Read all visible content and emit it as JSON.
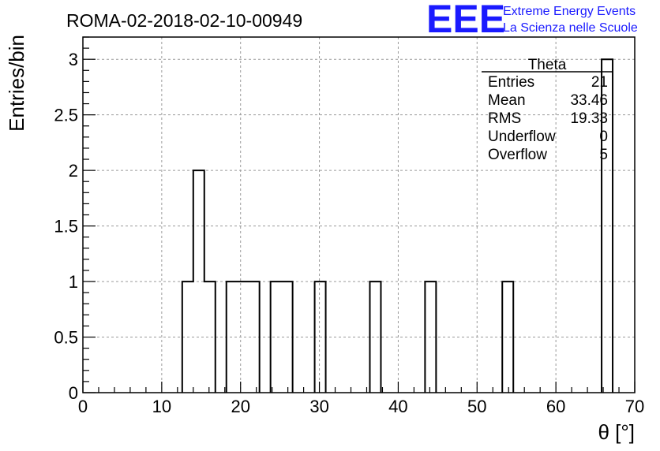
{
  "chart_data": {
    "type": "bar",
    "title": "ROMA-02-2018-02-10-00949",
    "xlabel": "θ [°]",
    "ylabel": "Entries/bin",
    "xlim": [
      0,
      70
    ],
    "ylim": [
      0,
      3.2
    ],
    "bin_width": 1.4,
    "grid": true,
    "x_ticks": [
      0,
      10,
      20,
      30,
      40,
      50,
      60,
      70
    ],
    "y_ticks": [
      0,
      0.5,
      1,
      1.5,
      2,
      2.5,
      3
    ],
    "x_tick_labels": [
      "0",
      "10",
      "20",
      "30",
      "40",
      "50",
      "60",
      "70"
    ],
    "y_tick_labels": [
      "0",
      "0.5",
      "1",
      "1.5",
      "2",
      "2.5",
      "3"
    ],
    "bins": [
      {
        "x": 12.6,
        "value": 1
      },
      {
        "x": 14.0,
        "value": 2
      },
      {
        "x": 15.4,
        "value": 1
      },
      {
        "x": 18.2,
        "value": 1
      },
      {
        "x": 19.6,
        "value": 1
      },
      {
        "x": 21.0,
        "value": 1
      },
      {
        "x": 23.8,
        "value": 1
      },
      {
        "x": 25.2,
        "value": 1
      },
      {
        "x": 29.4,
        "value": 1
      },
      {
        "x": 36.4,
        "value": 1
      },
      {
        "x": 43.4,
        "value": 1
      },
      {
        "x": 53.2,
        "value": 1
      },
      {
        "x": 65.8,
        "value": 3
      }
    ],
    "stats_box": {
      "title": "Theta",
      "placement": "top-right",
      "rows": [
        {
          "label": "Entries",
          "value": "21"
        },
        {
          "label": "Mean",
          "value": "33.46"
        },
        {
          "label": "RMS",
          "value": "19.33"
        },
        {
          "label": "Underflow",
          "value": "0"
        },
        {
          "label": "Overflow",
          "value": "5"
        }
      ]
    }
  },
  "logo": {
    "mark": "EEE",
    "line1": "Extreme Energy Events",
    "line2": "La Scienza nelle Scuole",
    "color": "#1a1aff"
  }
}
